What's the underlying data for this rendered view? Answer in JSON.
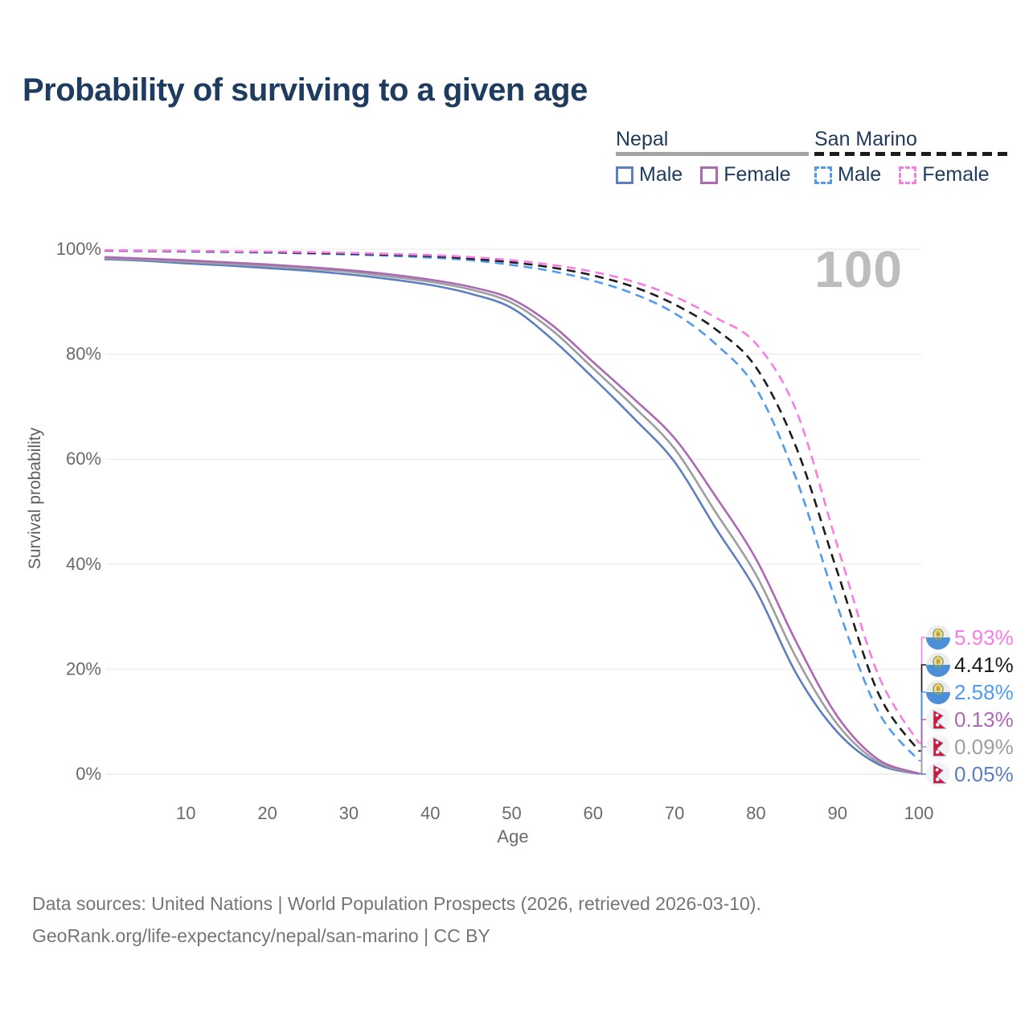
{
  "title": "Probability of surviving to a given age",
  "watermark_age": "100",
  "legend": {
    "nepal": {
      "name": "Nepal",
      "underline_color": "#a3a3a3",
      "male_label": "Male",
      "female_label": "Female"
    },
    "san_marino": {
      "name": "San Marino",
      "underline_color": "#1c1c1c",
      "male_label": "Male",
      "female_label": "Female"
    }
  },
  "chart_data": {
    "type": "line",
    "title": "Probability of surviving to a given age",
    "xlabel": "Age",
    "ylabel": "Survival probability",
    "xlim": [
      0,
      100
    ],
    "ylim": [
      0,
      100
    ],
    "grid": "horizontal",
    "x_ticks": [
      10,
      20,
      30,
      40,
      50,
      60,
      70,
      80,
      90,
      100
    ],
    "x_tick_labels": [
      "10",
      "20",
      "30",
      "40",
      "50",
      "60",
      "70",
      "80",
      "90",
      "100"
    ],
    "y_ticks": [
      0,
      20,
      40,
      60,
      80,
      100
    ],
    "y_tick_labels": [
      "0%",
      "20%",
      "40%",
      "60%",
      "80%",
      "100%"
    ],
    "x": [
      0,
      5,
      10,
      15,
      20,
      25,
      30,
      35,
      40,
      45,
      50,
      55,
      60,
      65,
      70,
      75,
      80,
      85,
      90,
      95,
      100
    ],
    "series": [
      {
        "name": "San Marino Female",
        "country": "San Marino",
        "sex": "Female",
        "line_style": "dashed",
        "color": "#f97ce3",
        "flag": "san-marino",
        "end_label": "5.93%",
        "end_value": 5.93,
        "values": [
          99.8,
          99.75,
          99.7,
          99.6,
          99.55,
          99.45,
          99.3,
          99.1,
          98.9,
          98.5,
          97.9,
          97.0,
          95.7,
          93.8,
          91.0,
          87.0,
          82.0,
          69.0,
          43.5,
          19.0,
          5.93
        ]
      },
      {
        "name": "San Marino",
        "country": "San Marino",
        "sex": "Both",
        "line_style": "dashed",
        "color": "#1c1c1c",
        "flag": "san-marino",
        "end_label": "4.41%",
        "end_value": 4.41,
        "values": [
          99.75,
          99.7,
          99.65,
          99.55,
          99.45,
          99.3,
          99.15,
          98.95,
          98.7,
          98.2,
          97.5,
          96.5,
          95.0,
          92.8,
          89.5,
          84.8,
          77.5,
          62.0,
          38.5,
          15.5,
          4.41
        ]
      },
      {
        "name": "San Marino Male",
        "country": "San Marino",
        "sex": "Male",
        "line_style": "dashed",
        "color": "#4f9bef",
        "flag": "san-marino",
        "end_label": "2.58%",
        "end_value": 2.58,
        "values": [
          99.7,
          99.65,
          99.55,
          99.45,
          99.35,
          99.2,
          99.0,
          98.75,
          98.4,
          97.9,
          97.0,
          95.8,
          94.0,
          91.5,
          87.8,
          82.0,
          73.5,
          56.0,
          32.0,
          12.0,
          2.58
        ]
      },
      {
        "name": "Nepal Female",
        "country": "Nepal",
        "sex": "Female",
        "line_style": "solid",
        "color": "#ad68b3",
        "flag": "nepal",
        "end_label": "0.13%",
        "end_value": 0.13,
        "values": [
          98.5,
          98.2,
          97.9,
          97.5,
          97.1,
          96.6,
          96.0,
          95.2,
          94.2,
          92.8,
          90.5,
          85.5,
          78.5,
          71.5,
          64.0,
          53.0,
          41.0,
          25.0,
          11.0,
          2.8,
          0.13
        ]
      },
      {
        "name": "Nepal",
        "country": "Nepal",
        "sex": "Both",
        "line_style": "solid",
        "color": "#9e9ea0",
        "flag": "nepal",
        "end_label": "0.09%",
        "end_value": 0.09,
        "values": [
          98.3,
          98.0,
          97.6,
          97.2,
          96.8,
          96.3,
          95.7,
          94.8,
          93.8,
          92.3,
          89.8,
          84.5,
          77.3,
          70.0,
          62.0,
          50.0,
          38.0,
          22.0,
          9.5,
          2.3,
          0.09
        ]
      },
      {
        "name": "Nepal Male",
        "country": "Nepal",
        "sex": "Male",
        "line_style": "solid",
        "color": "#5b7fc0",
        "flag": "nepal",
        "end_label": "0.05%",
        "end_value": 0.05,
        "values": [
          98.1,
          97.8,
          97.3,
          96.9,
          96.4,
          95.9,
          95.2,
          94.3,
          93.2,
          91.5,
          88.8,
          82.8,
          75.5,
          67.8,
          59.5,
          47.0,
          35.0,
          19.0,
          8.0,
          1.9,
          0.05
        ]
      }
    ]
  },
  "footer": {
    "line1": "Data sources: United Nations | World Population Prospects (2026, retrieved 2026-03-10).",
    "line2": "GeoRank.org/life-expectancy/nepal/san-marino | CC BY"
  }
}
